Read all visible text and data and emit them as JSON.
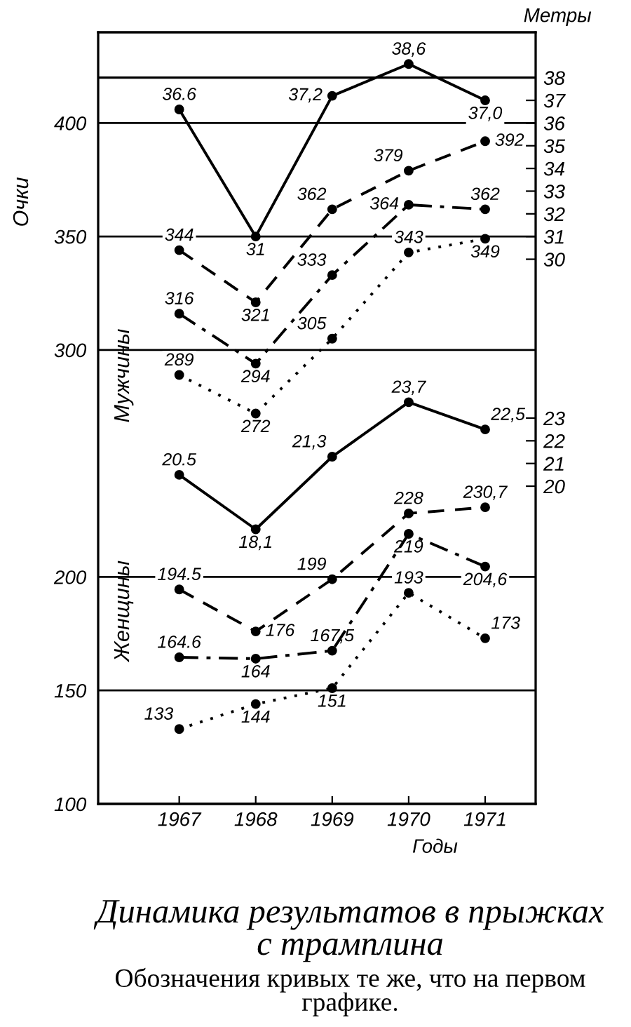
{
  "chart_data": {
    "type": "line",
    "title": "Динамика результатов в прыжках\nс трамплина",
    "xlabel": "Годы",
    "ylabel": "Очки",
    "y2label": "Метры",
    "categories": [
      "1967",
      "1968",
      "1969",
      "1970",
      "1971"
    ],
    "series": [
      {
        "color": "#000000",
        "line_style": "solid",
        "axis": "y2",
        "values": [
          36.6,
          31,
          37.2,
          38.6,
          37.0
        ],
        "value_labels": [
          "36.6",
          "31",
          "37,2",
          "38,6",
          "37,0"
        ]
      },
      {
        "color": "#000000",
        "line_style": "dashed",
        "values": [
          344,
          321,
          362,
          379,
          392
        ],
        "value_labels": [
          "344",
          "321",
          "362",
          "379",
          "392"
        ]
      },
      {
        "color": "#000000",
        "line_style": "dashdot",
        "values": [
          316,
          294,
          333,
          364,
          362
        ],
        "value_labels": [
          "316",
          "294",
          "333",
          "364",
          "362"
        ]
      },
      {
        "color": "#000000",
        "line_style": "dotted",
        "values": [
          289,
          272,
          305,
          343,
          349
        ],
        "value_labels": [
          "289",
          "272",
          "305",
          "343",
          "349"
        ]
      },
      {
        "color": "#000000",
        "line_style": "solid",
        "axis": "y2",
        "values": [
          20.5,
          18.1,
          21.3,
          23.7,
          22.5
        ],
        "value_labels": [
          "20.5",
          "18,1",
          "21,3",
          "23,7",
          "22,5"
        ]
      },
      {
        "color": "#000000",
        "line_style": "dashed",
        "values": [
          194.5,
          176,
          199,
          228,
          230.7
        ],
        "value_labels": [
          "194.5",
          "176",
          "199",
          "228",
          "230,7"
        ]
      },
      {
        "color": "#000000",
        "line_style": "dashdot",
        "values": [
          164.6,
          164,
          167.5,
          219,
          204.6
        ],
        "value_labels": [
          "164.6",
          "164",
          "167,5",
          "219",
          "204,6"
        ]
      },
      {
        "color": "#000000",
        "line_style": "dotted",
        "values": [
          133,
          144,
          151,
          193,
          173
        ],
        "value_labels": [
          "133",
          "144",
          "151",
          "193",
          "173"
        ]
      }
    ],
    "ylim": [
      100,
      440
    ],
    "yticks": [
      100,
      150,
      200,
      300,
      350,
      400
    ],
    "y2lim": [
      6,
      40
    ],
    "y2ticks": [
      20,
      21,
      22,
      23,
      30,
      31,
      32,
      33,
      34,
      35,
      36,
      37,
      38
    ],
    "grid": "y",
    "marker": "circle",
    "ref_lines": [
      {
        "axis": "y2",
        "value": 38,
        "color": "#000000"
      }
    ],
    "annotations": [
      "Мужчины",
      "Женщины",
      "Обозначения кривых те же, что на первом\nграфике."
    ]
  }
}
